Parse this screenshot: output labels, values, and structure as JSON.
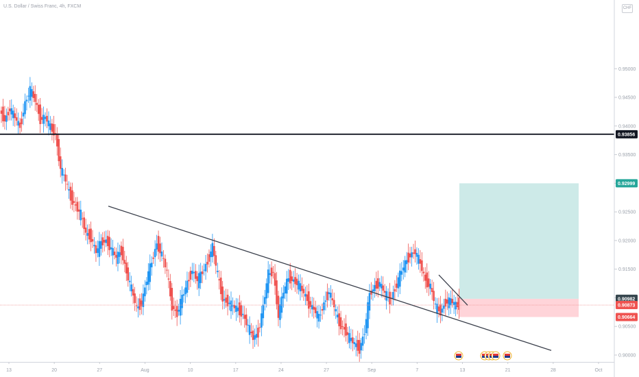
{
  "header": {
    "title": "U.S. Dollar / Swiss Franc, 4h, FXCM",
    "currency": "CHF"
  },
  "colors": {
    "up": "#2196f3",
    "down": "#ef5350",
    "target": "#b2dfdb",
    "stop": "#ffcdd2"
  },
  "chart_data": {
    "type": "candlestick",
    "title": "U.S. Dollar / Swiss Franc, 4h, FXCM",
    "ylim": [
      0.8988,
      0.962
    ],
    "y_ticks": [
      "0.95000",
      "0.94500",
      "0.94000",
      "0.93500",
      "0.93000",
      "0.92500",
      "0.92000",
      "0.91500",
      "0.91000",
      "0.90500",
      "0.90000"
    ],
    "x_ticks": [
      "13",
      "20",
      "27",
      "Aug",
      "10",
      "17",
      "24",
      "27",
      "Sep",
      "7",
      "13",
      "21",
      "28",
      "Oct"
    ],
    "series": [
      {
        "values": [
          0.9427,
          0.941,
          0.943,
          0.9415,
          0.9398,
          0.944,
          0.9463,
          0.9445,
          0.9412,
          0.9415,
          0.9398,
          0.9385,
          0.9326,
          0.9305,
          0.9275,
          0.926,
          0.9245,
          0.9213,
          0.9205,
          0.918,
          0.9196,
          0.92,
          0.9185,
          0.917,
          0.9182,
          0.9145,
          0.9115,
          0.9082,
          0.909,
          0.9131,
          0.9162,
          0.9195,
          0.9175,
          0.9145,
          0.9085,
          0.9072,
          0.91,
          0.9125,
          0.9148,
          0.913,
          0.9145,
          0.9162,
          0.919,
          0.914,
          0.9098,
          0.9092,
          0.9085,
          0.908,
          0.907,
          0.905,
          0.903,
          0.9038,
          0.9085,
          0.9141,
          0.9145,
          0.907,
          0.911,
          0.9135,
          0.913,
          0.9123,
          0.9109,
          0.909,
          0.908,
          0.9065,
          0.909,
          0.9111,
          0.9085,
          0.9055,
          0.9045,
          0.903,
          0.902,
          0.901,
          0.904,
          0.9105,
          0.912,
          0.9125,
          0.9108,
          0.9095,
          0.9115,
          0.914,
          0.916,
          0.9175,
          0.918,
          0.916,
          0.913,
          0.912,
          0.9085,
          0.9075,
          0.9092,
          0.9095,
          0.9087,
          0.9087
        ]
      }
    ],
    "horizontal_levels": [
      0.93856
    ],
    "price_labels": [
      "0.93856",
      "0.92999",
      "0.90982",
      "0.90873",
      "0.90664"
    ],
    "position": {
      "target": 0.92999,
      "entry": 0.90982,
      "stop": 0.90664
    },
    "trendlines": [
      {
        "from": [
          "Jul 27",
          0.926
        ],
        "to": [
          "Sep 28",
          0.9008
        ]
      },
      {
        "from": [
          "Sep 10",
          0.914
        ],
        "to": [
          "Sep 13",
          0.9087
        ]
      }
    ],
    "current_price": 0.90873
  }
}
